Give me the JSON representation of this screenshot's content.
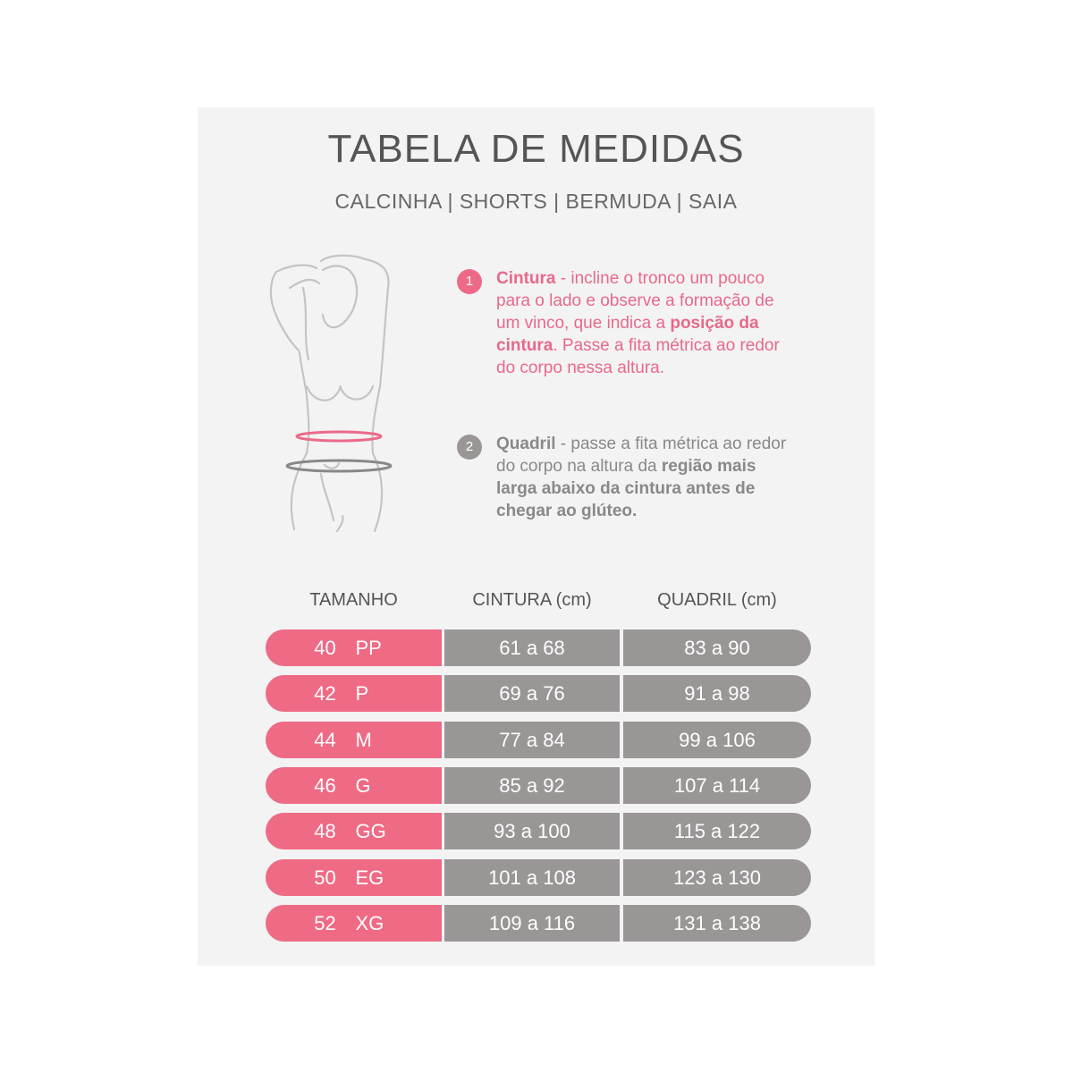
{
  "title": "TABELA DE MEDIDAS",
  "subtitle": "CALCINHA | SHORTS | BERMUDA | SAIA",
  "colors": {
    "pink": "#ef6a85",
    "gray": "#9a9696",
    "background": "#f3f3f3"
  },
  "figure_icon": "body-silhouette-icon",
  "steps": [
    {
      "number": "1",
      "label": "Cintura",
      "sep": " -  ",
      "text_a": "incline o tronco um pouco para o lado e observe a formação de um vinco, que indica a ",
      "bold": "posição da cintura",
      "text_b": ". Passe a fita métrica ao redor do corpo nessa altura."
    },
    {
      "number": "2",
      "label": "Quadril",
      "sep": " - ",
      "text_a": "passe a fita métrica ao redor do corpo na altura da ",
      "bold": "região mais larga abaixo da cintura antes de chegar ao glúteo.",
      "text_b": ""
    }
  ],
  "table": {
    "headers": [
      "TAMANHO",
      "CINTURA (cm)",
      "QUADRIL (cm)"
    ],
    "rows": [
      {
        "num": "40",
        "size": "PP",
        "cintura": "61 a 68",
        "quadril": "83 a 90"
      },
      {
        "num": "42",
        "size": "P",
        "cintura": "69 a 76",
        "quadril": "91 a 98"
      },
      {
        "num": "44",
        "size": "M",
        "cintura": "77 a 84",
        "quadril": "99 a 106"
      },
      {
        "num": "46",
        "size": "G",
        "cintura": "85 a 92",
        "quadril": "107 a 114"
      },
      {
        "num": "48",
        "size": "GG",
        "cintura": "93 a 100",
        "quadril": "115 a 122"
      },
      {
        "num": "50",
        "size": "EG",
        "cintura": "101 a 108",
        "quadril": "123 a 130"
      },
      {
        "num": "52",
        "size": "XG",
        "cintura": "109 a 116",
        "quadril": "131 a 138"
      }
    ]
  }
}
